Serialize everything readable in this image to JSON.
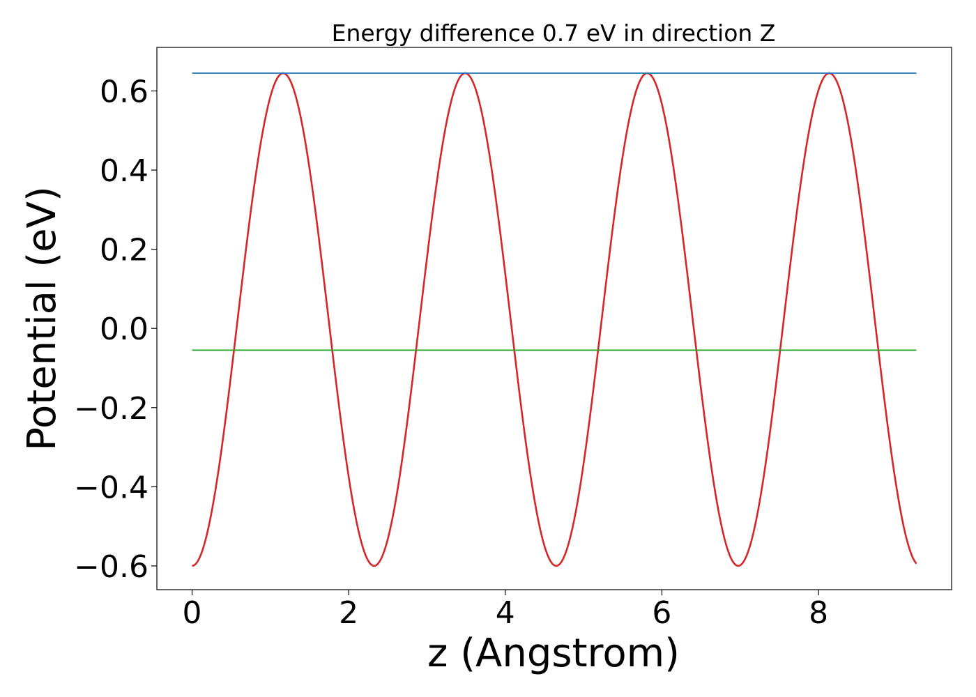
{
  "chart_data": {
    "type": "line",
    "title": "Energy difference 0.7 eV in direction Z",
    "xlabel": "z (Angstrom)",
    "ylabel": "Potential (eV)",
    "xlim": [
      -0.45,
      9.7
    ],
    "ylim": [
      -0.66,
      0.71
    ],
    "xticks": [
      0,
      2,
      4,
      6,
      8
    ],
    "xtick_labels": [
      "0",
      "2",
      "4",
      "6",
      "8"
    ],
    "yticks": [
      -0.6,
      -0.4,
      -0.2,
      0.0,
      0.2,
      0.4,
      0.6
    ],
    "ytick_labels": [
      "−0.6",
      "−0.4",
      "−0.2",
      "0.0",
      "0.2",
      "0.4",
      "0.6"
    ],
    "grid": false,
    "series": [
      {
        "color": "#d62728",
        "style": "solid",
        "period": 2.325,
        "x_start": 0.0,
        "x_end": 9.25,
        "y_min": -0.6,
        "y_max": 0.645,
        "minima_x": [
          0.0,
          2.325,
          4.65,
          6.975
        ],
        "maxima_x": [
          1.1625,
          3.4875,
          5.8125,
          8.1375
        ]
      },
      {
        "color": "#1f77b4",
        "style": "solid",
        "x": [
          0.0,
          9.25
        ],
        "y": [
          0.645,
          0.645
        ]
      },
      {
        "color": "#2ca02c",
        "style": "solid",
        "x": [
          0.0,
          9.25
        ],
        "y": [
          -0.055,
          -0.055
        ]
      }
    ]
  }
}
